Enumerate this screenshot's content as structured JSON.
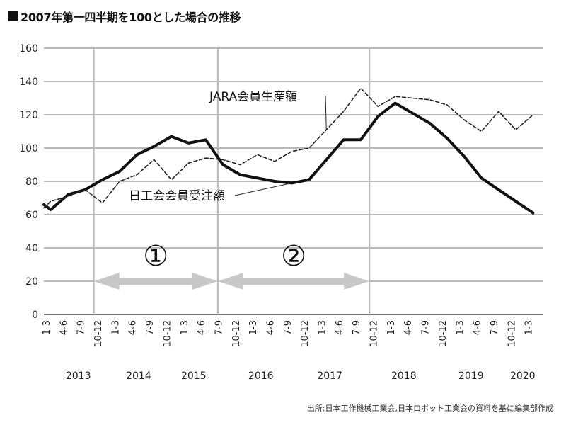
{
  "title": "2007年第一四半期を100とした場合の推移",
  "source": "出所:日本工作機械工業会,日本ロボット工業会の資料を基に編集部作成",
  "chart_data": {
    "type": "line",
    "title": "2007年第一四半期を100とした場合の推移",
    "xlabel": "",
    "ylabel": "",
    "ylim": [
      0,
      160
    ],
    "yticks": [
      0,
      20,
      40,
      60,
      80,
      100,
      120,
      140,
      160
    ],
    "grid": "horizontal",
    "categories": [
      "1-3",
      "4-6",
      "7-9",
      "10-12",
      "1-3",
      "4-6",
      "7-9",
      "10-12",
      "1-3",
      "4-6",
      "7-9",
      "10-12",
      "1-3",
      "4-6",
      "7-9",
      "10-12",
      "1-3",
      "4-6",
      "7-9",
      "10-12",
      "1-3",
      "4-6",
      "7-9",
      "10-12",
      "1-3",
      "4-6",
      "7-9",
      "10-12",
      "1-3"
    ],
    "years": [
      {
        "label": "2013",
        "index": 2
      },
      {
        "label": "2014",
        "index": 5.5
      },
      {
        "label": "2015",
        "index": 8.7
      },
      {
        "label": "2016",
        "index": 12.6
      },
      {
        "label": "2017",
        "index": 16.6
      },
      {
        "label": "2018",
        "index": 20.9
      },
      {
        "label": "2019",
        "index": 24.8
      },
      {
        "label": "2020",
        "index": 27.8
      }
    ],
    "series": [
      {
        "name": "日工会会員受注額",
        "style": "solid",
        "color": "#111111",
        "x": [
          0,
          0.4,
          1.4,
          2.4,
          3.4,
          4.4,
          5.4,
          6.4,
          7.4,
          8.4,
          9.4,
          10.4,
          11.4,
          12.4,
          13.4,
          14.4,
          15.4,
          16.4,
          17.4,
          18.4,
          19.4,
          20.4,
          21.4,
          22.4,
          23.4,
          24.4,
          25.4,
          26.4,
          27.4,
          28.4
        ],
        "values": [
          66,
          63,
          72,
          75,
          81,
          86,
          96,
          101,
          107,
          103,
          105,
          90,
          84,
          82,
          80,
          79,
          81,
          93,
          105,
          105,
          119,
          127,
          121,
          115,
          106,
          95,
          82,
          75,
          68,
          61
        ]
      },
      {
        "name": "JARA会員生産額",
        "style": "dashed",
        "color": "#222222",
        "x": [
          0,
          0.4,
          1.4,
          2.4,
          3.4,
          4.4,
          5.4,
          6.4,
          7.4,
          8.4,
          9.4,
          10.4,
          11.4,
          12.4,
          13.4,
          14.4,
          15.4,
          16.4,
          17.4,
          18.4,
          19.4,
          20.4,
          21.4,
          22.4,
          23.4,
          24.4,
          25.4,
          26.4,
          27.4,
          28.4
        ],
        "values": [
          64,
          68,
          71,
          75,
          67,
          80,
          84,
          93,
          81,
          91,
          94,
          93,
          90,
          96,
          92,
          98,
          100,
          111,
          122,
          136,
          125,
          131,
          130,
          129,
          126,
          117,
          110,
          122,
          111,
          120
        ]
      }
    ],
    "annotations": [
      {
        "text": "JARA会員生産額",
        "series": "JARA会員生産額"
      },
      {
        "text": "日工会会員受注額",
        "series": "日工会会員受注額"
      }
    ],
    "periods": [
      {
        "label": "①",
        "from_index": 2.4,
        "to_index": 9.6
      },
      {
        "label": "②",
        "from_index": 9.6,
        "to_index": 18.4
      }
    ],
    "vertical_markers": [
      2.4,
      9.6,
      18.4
    ]
  }
}
